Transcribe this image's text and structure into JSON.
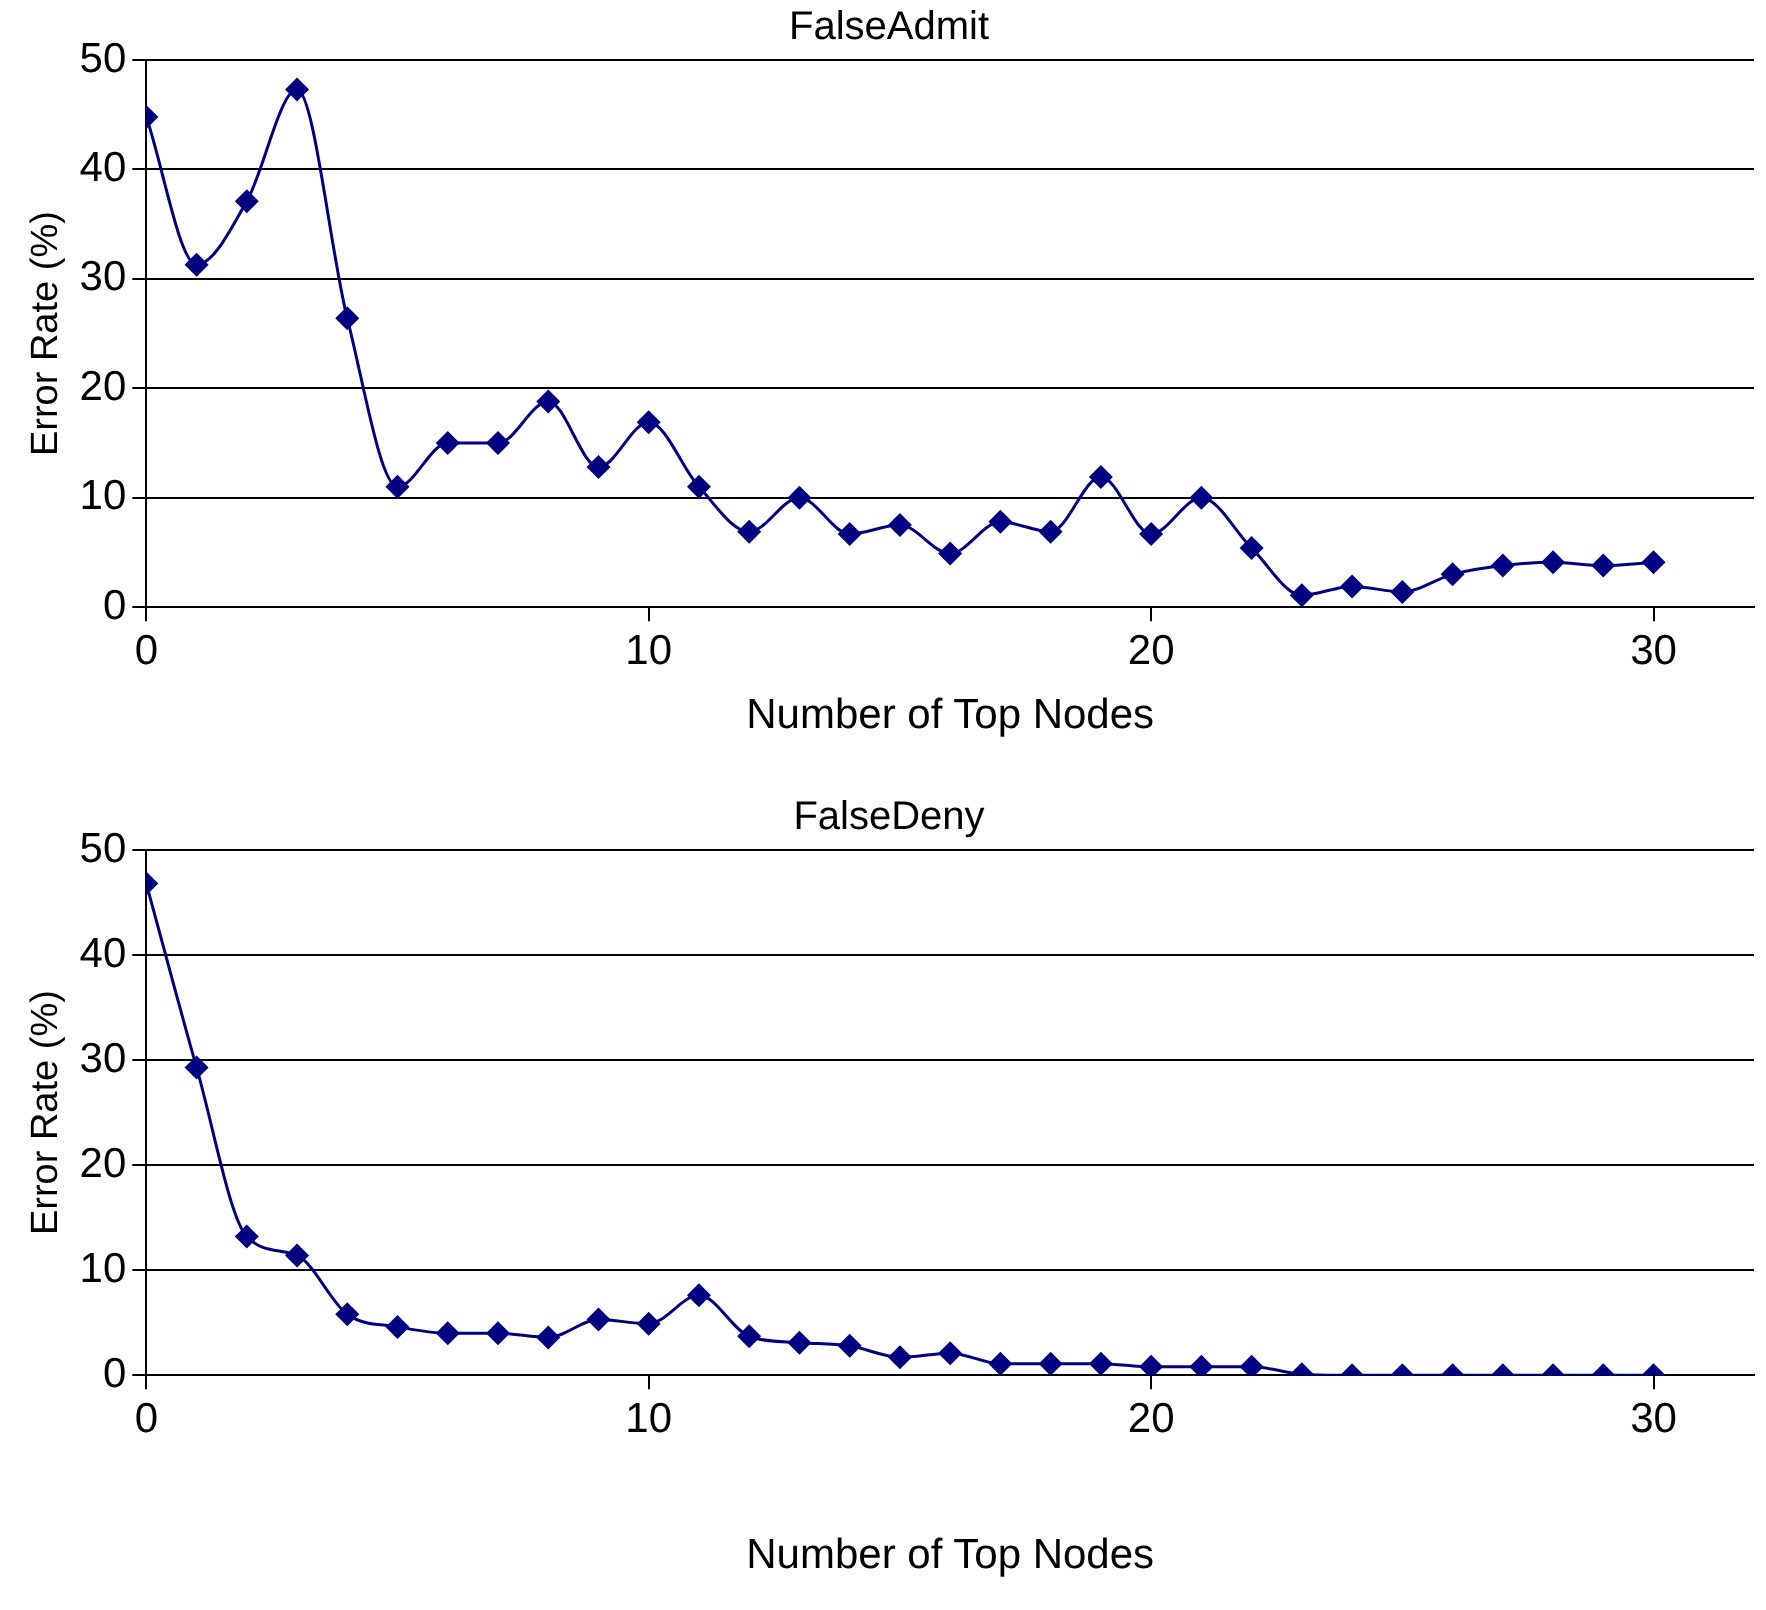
{
  "chart_data": [
    {
      "type": "line",
      "title": "FalseAdmit",
      "xlabel": "Number of Top Nodes",
      "ylabel": "Error Rate (%)",
      "x": [
        0,
        1,
        2,
        3,
        4,
        5,
        6,
        7,
        8,
        9,
        10,
        11,
        12,
        13,
        14,
        15,
        16,
        17,
        18,
        19,
        20,
        21,
        22,
        23,
        24,
        25,
        26,
        27,
        28,
        29,
        30
      ],
      "series": [
        {
          "color": "#000080",
          "values": [
            44.8,
            31.3,
            37.1,
            47.3,
            26.4,
            11.0,
            15.0,
            15.0,
            18.8,
            12.8,
            16.9,
            11.0,
            6.9,
            10.0,
            6.7,
            7.5,
            4.9,
            7.8,
            6.9,
            11.9,
            6.7,
            10.0,
            5.4,
            1.1,
            1.9,
            1.4,
            3.0,
            3.8,
            4.1,
            3.8,
            4.1
          ]
        }
      ],
      "xlim": [
        0,
        32
      ],
      "xticks": [
        0,
        10,
        20,
        30
      ],
      "ylim": [
        0,
        50
      ],
      "yticks": [
        0,
        10,
        20,
        30,
        40,
        50
      ],
      "grid": "y",
      "legend": false,
      "marker": "diamond",
      "line_style": "solid"
    },
    {
      "type": "line",
      "title": "FalseDeny",
      "xlabel": "Number of Top Nodes",
      "ylabel": "Error Rate (%)",
      "x": [
        0,
        1,
        2,
        3,
        4,
        5,
        6,
        7,
        8,
        9,
        10,
        11,
        12,
        13,
        14,
        15,
        16,
        17,
        18,
        19,
        20,
        21,
        22,
        23,
        24,
        25,
        26,
        27,
        28,
        29,
        30
      ],
      "series": [
        {
          "color": "#000080",
          "values": [
            46.8,
            29.3,
            13.2,
            11.4,
            5.8,
            4.6,
            4.0,
            4.0,
            3.6,
            5.3,
            4.9,
            7.6,
            3.7,
            3.1,
            2.8,
            1.7,
            2.1,
            1.1,
            1.1,
            1.1,
            0.8,
            0.8,
            0.8,
            0.1,
            0,
            0,
            0,
            0,
            0,
            0,
            0
          ]
        }
      ],
      "xlim": [
        0,
        32
      ],
      "xticks": [
        0,
        10,
        20,
        30
      ],
      "ylim": [
        0,
        50
      ],
      "yticks": [
        0,
        10,
        20,
        30,
        40,
        50
      ],
      "grid": "y",
      "legend": false,
      "marker": "diamond",
      "line_style": "solid"
    }
  ]
}
